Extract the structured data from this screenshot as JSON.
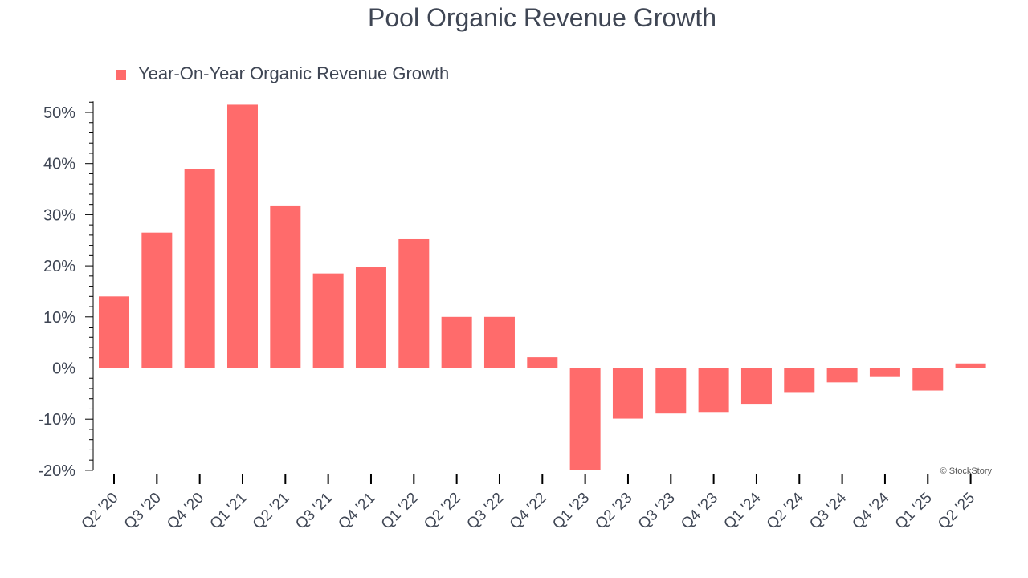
{
  "chart_data": {
    "type": "bar",
    "title": "Pool Organic Revenue Growth",
    "legend": {
      "label": "Year-On-Year Organic Revenue Growth",
      "placement": "top-left"
    },
    "series": [
      {
        "name": "Year-On-Year Organic Revenue Growth",
        "color": "#ff6b6b",
        "values": [
          14.0,
          26.5,
          39.0,
          51.5,
          31.8,
          18.5,
          19.7,
          25.2,
          10.0,
          10.0,
          2.1,
          -20.0,
          -9.9,
          -8.9,
          -8.6,
          -7.0,
          -4.7,
          -2.8,
          -1.6,
          -4.4,
          0.9
        ]
      }
    ],
    "categories": [
      "Q2 '20",
      "Q3 '20",
      "Q4 '20",
      "Q1 '21",
      "Q2 '21",
      "Q3 '21",
      "Q4 '21",
      "Q1 '22",
      "Q2 '22",
      "Q3 '22",
      "Q4 '22",
      "Q1 '23",
      "Q2 '23",
      "Q3 '23",
      "Q4 '23",
      "Q1 '24",
      "Q2 '24",
      "Q3 '24",
      "Q4 '24",
      "Q1 '25",
      "Q2 '25"
    ],
    "y_ticks": [
      50,
      40,
      30,
      20,
      10,
      0,
      -10,
      -20
    ],
    "y_tick_labels": [
      "50%",
      "40%",
      "30%",
      "20%",
      "10%",
      "0%",
      "-10%",
      "-20%"
    ],
    "ylim": [
      -20,
      52
    ],
    "xlabel": "",
    "ylabel": "",
    "grid": false
  },
  "watermark": "© StockStory",
  "colors": {
    "bar": "#ff6b6b",
    "text": "#3f4654",
    "axis": "#000000"
  }
}
